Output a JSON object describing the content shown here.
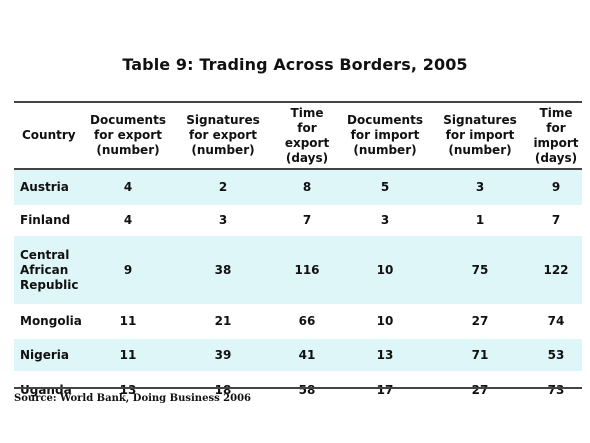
{
  "title": "Table 9: Trading Across Borders, 2005",
  "headers": [
    "Country",
    "Documents\nfor export\n(number)",
    "Signatures\nfor export\n(number)",
    "Time\nfor\nexport\n(days)",
    "Documents\nfor import\n(number)",
    "Signatures\nfor import\n(number)",
    "Time\nfor\nimport\n(days)"
  ],
  "rows": [
    {
      "country": "Austria",
      "values": [
        "4",
        "2",
        "8",
        "5",
        "3",
        "9"
      ],
      "shaded": true
    },
    {
      "country": "Finland",
      "values": [
        "4",
        "3",
        "7",
        "3",
        "1",
        "7"
      ],
      "shaded": false
    },
    {
      "country": "Central\nAfrican\nRepublic",
      "values": [
        "9",
        "38",
        "116",
        "10",
        "75",
        "122"
      ],
      "shaded": true
    },
    {
      "country": "Mongolia",
      "values": [
        "11",
        "21",
        "66",
        "10",
        "27",
        "74"
      ],
      "shaded": false
    },
    {
      "country": "Nigeria",
      "values": [
        "11",
        "39",
        "41",
        "13",
        "71",
        "53"
      ],
      "shaded": true
    },
    {
      "country": "Uganda",
      "values": [
        "13",
        "18",
        "58",
        "17",
        "27",
        "73"
      ],
      "shaded": false
    }
  ],
  "source": "Source: World Bank, Doing Business 2006",
  "colors": {
    "row_shade": "#dff6f8",
    "rule": "#444444"
  }
}
